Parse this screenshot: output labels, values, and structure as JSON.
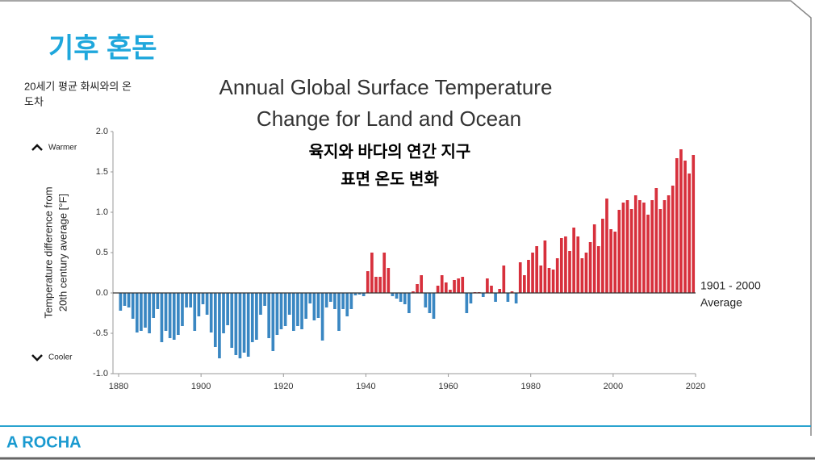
{
  "slide": {
    "title": "기후 혼돈",
    "note": [
      "20세기 평균 화씨와의 온",
      "도차"
    ],
    "logo": "A ROCHA"
  },
  "chart_data": {
    "type": "bar",
    "title": [
      "Annual Global Surface Temperature",
      "Change for Land and Ocean"
    ],
    "subtitle": [
      "육지와 바다의 연간 지구",
      "표면 온도 변화"
    ],
    "y_label": [
      "Temperature difference from",
      "20th century average [°F]"
    ],
    "annotations": {
      "warmer": "Warmer",
      "cooler": "Cooler",
      "baseline": [
        "1901 - 2000",
        "Average"
      ]
    },
    "colors": {
      "positive": "#d7303c",
      "negative": "#3a87c2"
    },
    "xlim": [
      1880,
      2020
    ],
    "xticks": [
      1880,
      1900,
      1920,
      1940,
      1960,
      1980,
      2000,
      2020
    ],
    "ylim": [
      -1,
      2
    ],
    "yticks": [
      {
        "value": 2,
        "label": "2.0"
      },
      1.5,
      {
        "value": 1,
        "label": "1.0"
      },
      0.5,
      {
        "value": 0,
        "label": "0.0"
      },
      -0.5,
      {
        "value": -1,
        "label": "-1.0"
      }
    ],
    "x": [
      1880,
      1881,
      1882,
      1883,
      1884,
      1885,
      1886,
      1887,
      1888,
      1889,
      1890,
      1891,
      1892,
      1893,
      1894,
      1895,
      1896,
      1897,
      1898,
      1899,
      1900,
      1901,
      1902,
      1903,
      1904,
      1905,
      1906,
      1907,
      1908,
      1909,
      1910,
      1911,
      1912,
      1913,
      1914,
      1915,
      1916,
      1917,
      1918,
      1919,
      1920,
      1921,
      1922,
      1923,
      1924,
      1925,
      1926,
      1927,
      1928,
      1929,
      1930,
      1931,
      1932,
      1933,
      1934,
      1935,
      1936,
      1937,
      1938,
      1939,
      1940,
      1941,
      1942,
      1943,
      1944,
      1945,
      1946,
      1947,
      1948,
      1949,
      1950,
      1951,
      1952,
      1953,
      1954,
      1955,
      1956,
      1957,
      1958,
      1959,
      1960,
      1961,
      1962,
      1963,
      1964,
      1965,
      1966,
      1967,
      1968,
      1969,
      1970,
      1971,
      1972,
      1973,
      1974,
      1975,
      1976,
      1977,
      1978,
      1979,
      1980,
      1981,
      1982,
      1983,
      1984,
      1985,
      1986,
      1987,
      1988,
      1989,
      1990,
      1991,
      1992,
      1993,
      1994,
      1995,
      1996,
      1997,
      1998,
      1999,
      2000,
      2001,
      2002,
      2003,
      2004,
      2005,
      2006,
      2007,
      2008,
      2009,
      2010,
      2011,
      2012,
      2013,
      2014,
      2015,
      2016,
      2017,
      2018,
      2019
    ],
    "values": [
      -0.22,
      -0.16,
      -0.18,
      -0.32,
      -0.49,
      -0.47,
      -0.43,
      -0.5,
      -0.31,
      -0.2,
      -0.61,
      -0.47,
      -0.56,
      -0.58,
      -0.52,
      -0.41,
      -0.18,
      -0.18,
      -0.47,
      -0.29,
      -0.14,
      -0.27,
      -0.49,
      -0.67,
      -0.81,
      -0.5,
      -0.4,
      -0.68,
      -0.77,
      -0.81,
      -0.74,
      -0.79,
      -0.61,
      -0.58,
      -0.27,
      -0.16,
      -0.56,
      -0.72,
      -0.52,
      -0.45,
      -0.41,
      -0.27,
      -0.47,
      -0.41,
      -0.45,
      -0.32,
      -0.13,
      -0.34,
      -0.31,
      -0.59,
      -0.18,
      -0.11,
      -0.2,
      -0.47,
      -0.2,
      -0.29,
      -0.2,
      -0.03,
      -0.02,
      -0.04,
      0.27,
      0.5,
      0.2,
      0.2,
      0.5,
      0.31,
      -0.04,
      -0.07,
      -0.11,
      -0.14,
      -0.25,
      0.02,
      0.11,
      0.22,
      -0.18,
      -0.25,
      -0.32,
      0.09,
      0.22,
      0.13,
      0.04,
      0.16,
      0.18,
      0.2,
      -0.25,
      -0.13,
      0.01,
      0.01,
      -0.05,
      0.18,
      0.09,
      -0.11,
      0.05,
      0.34,
      -0.11,
      0.02,
      -0.13,
      0.38,
      0.22,
      0.41,
      0.5,
      0.58,
      0.34,
      0.65,
      0.31,
      0.29,
      0.43,
      0.68,
      0.7,
      0.52,
      0.81,
      0.7,
      0.43,
      0.5,
      0.63,
      0.85,
      0.58,
      0.92,
      1.17,
      0.79,
      0.76,
      1.03,
      1.12,
      1.15,
      1.04,
      1.21,
      1.15,
      1.12,
      0.97,
      1.15,
      1.3,
      1.04,
      1.15,
      1.21,
      1.33,
      1.67,
      1.78,
      1.64,
      1.48,
      1.71
    ]
  }
}
